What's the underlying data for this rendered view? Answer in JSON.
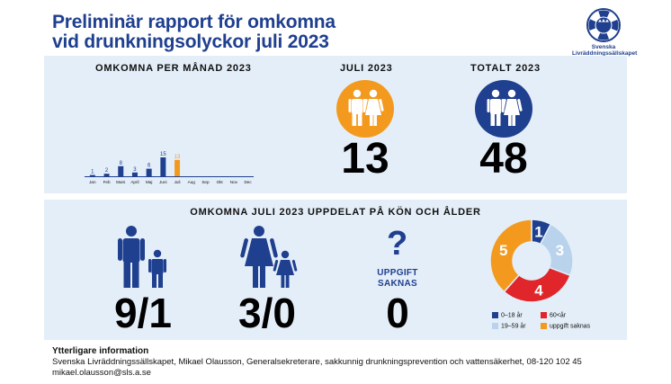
{
  "title": {
    "line1": "Preliminär rapport för omkomna",
    "line2": "vid drunkningsolyckor juli 2023"
  },
  "logo": {
    "text_line1": "Svenska",
    "text_line2": "Livräddningssällskapet",
    "lettering": "SLS"
  },
  "colors": {
    "blue": "#1f3f8f",
    "orange": "#f39a1e",
    "light_blue": "#b9d3ec",
    "red": "#e0262b",
    "panel": "#e4eef8"
  },
  "monthly": {
    "header": "OMKOMNA PER MÅNAD 2023",
    "highlight_month": "Juli"
  },
  "july": {
    "header": "JULI 2023",
    "value": "13",
    "icon": "man-woman-icon"
  },
  "total": {
    "header": "TOTALT 2023",
    "value": "48",
    "icon": "man-woman-icon"
  },
  "breakdown": {
    "header": "OMKOMNA JULI 2023 UPPDELAT PÅ KÖN OCH ÅLDER",
    "men": {
      "value": "9/1",
      "icon": "man-boy-icon"
    },
    "women": {
      "value": "3/0",
      "icon": "woman-girl-icon"
    },
    "unknown": {
      "symbol": "?",
      "label_line1": "UPPGIFT",
      "label_line2": "SAKNAS",
      "value": "0"
    }
  },
  "chart_data": [
    {
      "type": "bar",
      "categories": [
        "Jan",
        "Feb",
        "Mars",
        "April",
        "Maj",
        "Juni",
        "Juli",
        "Aug",
        "Sep",
        "Okt",
        "Nov",
        "Dec"
      ],
      "values": [
        1,
        2,
        8,
        3,
        6,
        15,
        13,
        null,
        null,
        null,
        null,
        null
      ],
      "title": "OMKOMNA PER MÅNAD 2023",
      "colors": [
        "#1f3f8f",
        "#1f3f8f",
        "#1f3f8f",
        "#1f3f8f",
        "#1f3f8f",
        "#1f3f8f",
        "#f39a1e"
      ],
      "ylim": [
        0,
        15
      ]
    },
    {
      "type": "pie",
      "donut": true,
      "categories": [
        "0–18 år",
        "19–59 år",
        "60<år",
        "uppgift saknas"
      ],
      "values": [
        1,
        3,
        4,
        5
      ],
      "colors": [
        "#1f3f8f",
        "#b9d3ec",
        "#e0262b",
        "#f39a1e"
      ],
      "legend_position": "bottom"
    }
  ],
  "footer": {
    "heading": "Ytterligare information",
    "text": "Svenska Livräddningssällskapet, Mikael Olausson, Generalsekreterare, sakkunnig drunkningsprevention och vattensäkerhet, 08-120 102 45  mikael.olausson@sls.a.se"
  }
}
